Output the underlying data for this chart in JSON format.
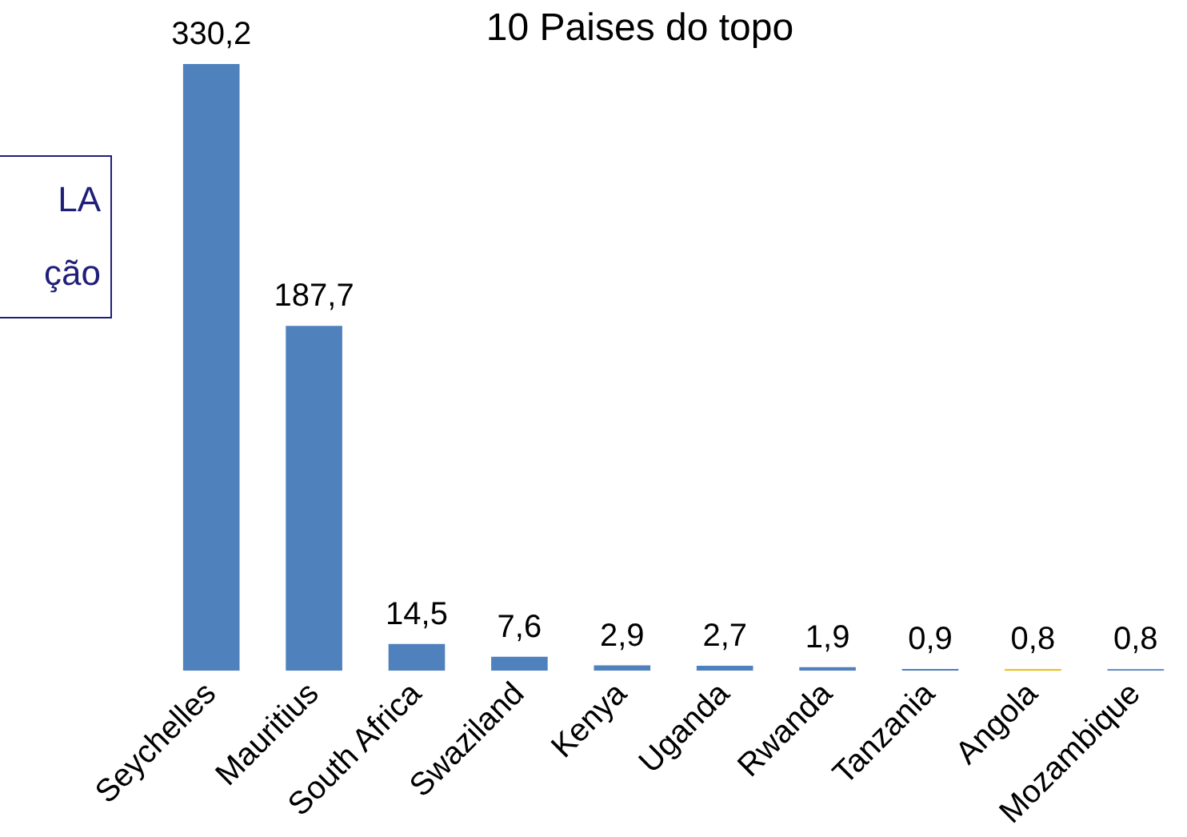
{
  "chart_data": {
    "type": "bar",
    "title": "10 Paises do topo",
    "categories": [
      "Seychelles",
      "Mauritius",
      "South Africa",
      "Swaziland",
      "Kenya",
      "Uganda",
      "Rwanda",
      "Tanzania",
      "Angola",
      "Mozambique"
    ],
    "values": [
      330.2,
      187.7,
      14.5,
      7.6,
      2.9,
      2.7,
      1.9,
      0.9,
      0.8,
      0.8
    ],
    "value_labels": [
      "330,2",
      "187,7",
      "14,5",
      "7,6",
      "2,9",
      "2,7",
      "1,9",
      "0,9",
      "0,8",
      "0,8"
    ],
    "colors": [
      "#4f81bd",
      "#4f81bd",
      "#4f81bd",
      "#4f81bd",
      "#4f81bd",
      "#4f81bd",
      "#4f81bd",
      "#4f81bd",
      "#e6b800",
      "#4f81bd"
    ],
    "annotations": [
      "LA",
      "ção"
    ],
    "grid": false,
    "legend": false
  }
}
